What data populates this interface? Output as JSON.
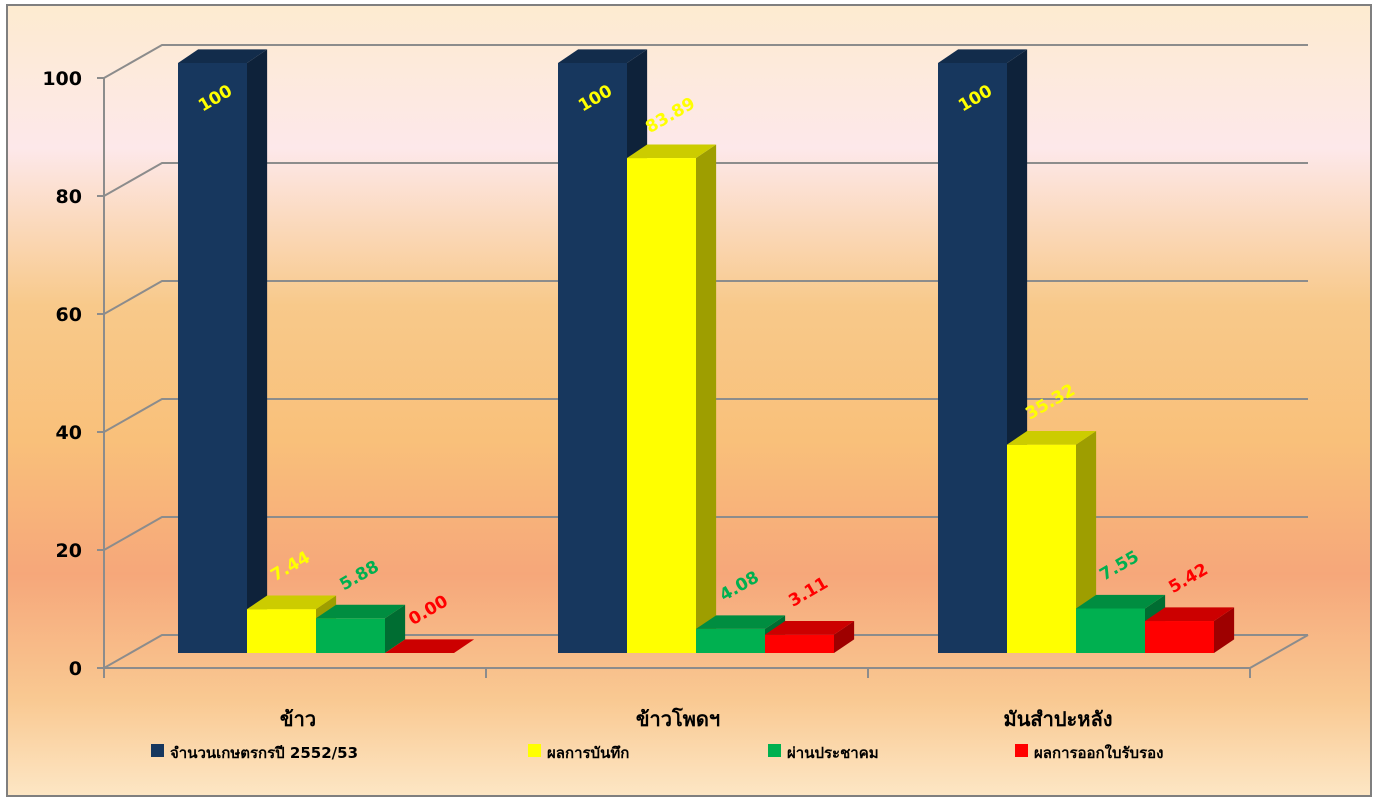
{
  "chart_data": {
    "type": "bar",
    "subtype": "3d-clustered-column",
    "title": "",
    "xlabel": "",
    "ylabel": "",
    "categories": [
      "ข้าว",
      "ข้าวโพดฯ",
      "มันสำปะหลัง"
    ],
    "ylim": [
      0,
      100
    ],
    "yticks": [
      0,
      20,
      40,
      60,
      80,
      100
    ],
    "grid": true,
    "legend_position": "bottom",
    "series": [
      {
        "name": "จำนวนเกษตรกรปี  2552/53",
        "values": [
          100,
          100,
          100
        ],
        "labels": [
          "100",
          "100",
          "100"
        ],
        "color": "#17375e",
        "label_color": "#ffff00"
      },
      {
        "name": "ผลการบันทึก",
        "values": [
          7.44,
          83.89,
          35.32
        ],
        "labels": [
          "7.44",
          "83.89",
          "35.32"
        ],
        "color": "#ffff00",
        "label_color": "#ffff00"
      },
      {
        "name": "ผ่านประชาคม",
        "values": [
          5.88,
          4.08,
          7.55
        ],
        "labels": [
          "5.88",
          "4.08",
          "7.55"
        ],
        "color": "#00b050",
        "label_color": "#00b050"
      },
      {
        "name": "ผลการออกใบรับรอง",
        "values": [
          0.0,
          3.11,
          5.42
        ],
        "labels": [
          "0.00",
          "3.11",
          "5.42"
        ],
        "color": "#ff0000",
        "label_color": "#ff0000"
      }
    ]
  }
}
